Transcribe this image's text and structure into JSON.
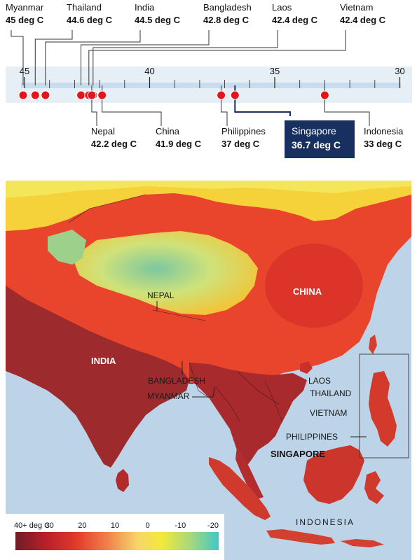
{
  "temperature_scale": {
    "ticks": [
      45,
      40,
      35,
      30
    ],
    "countries": [
      {
        "name": "Myanmar",
        "value_label": "45 deg C",
        "temp": 45,
        "side": "top"
      },
      {
        "name": "Thailand",
        "value_label": "44.6 deg C",
        "temp": 44.6,
        "side": "top"
      },
      {
        "name": "India",
        "value_label": "44.5 deg C",
        "temp": 44.5,
        "side": "top"
      },
      {
        "name": "Bangladesh",
        "value_label": "42.8 deg C",
        "temp": 42.8,
        "side": "top"
      },
      {
        "name": "Laos",
        "value_label": "42.4 deg C",
        "temp": 42.4,
        "side": "top"
      },
      {
        "name": "Vietnam",
        "value_label": "42.4 deg C",
        "temp": 42.4,
        "side": "top"
      },
      {
        "name": "Nepal",
        "value_label": "42.2 deg C",
        "temp": 42.2,
        "side": "bottom"
      },
      {
        "name": "China",
        "value_label": "41.9 deg C",
        "temp": 41.9,
        "side": "bottom"
      },
      {
        "name": "Philippines",
        "value_label": "37 deg C",
        "temp": 37,
        "side": "bottom"
      },
      {
        "name": "Singapore",
        "value_label": "36.7 deg C",
        "temp": 36.7,
        "side": "bottom",
        "highlight": true
      },
      {
        "name": "Indonesia",
        "value_label": "33 deg C",
        "temp": 33,
        "side": "bottom"
      }
    ],
    "colors": {
      "bar": "#c9dcee",
      "dot": "#e3141b",
      "highlight_box": "#17305f",
      "highlight_text": "#ffffff"
    }
  },
  "map": {
    "labels": {
      "china": "CHINA",
      "india": "INDIA",
      "nepal": "NEPAL",
      "bangladesh": "BANGLADESH",
      "myanmar": "MYANMAR",
      "laos": "LAOS",
      "thailand": "THAILAND",
      "vietnam": "VIETNAM",
      "philippines": "PHILIPPINES",
      "singapore": "SINGAPORE",
      "indonesia": "INDONESIA"
    },
    "colors": {
      "sea": "#bcd3e8",
      "hot": "#c8242a",
      "warm": "#e8452c",
      "mild": "#f6c72d",
      "cool": "#7fc9a3",
      "extreme": "#7d1f24"
    }
  },
  "legend": {
    "labels": [
      "40+ deg C",
      "30",
      "20",
      "10",
      "0",
      "-10",
      "-20"
    ],
    "gradient": [
      "#6e1e24",
      "#b81f2a",
      "#e23a2a",
      "#f0804a",
      "#f7d56a",
      "#f2e93a",
      "#a8d87c",
      "#3fc8c6"
    ]
  }
}
